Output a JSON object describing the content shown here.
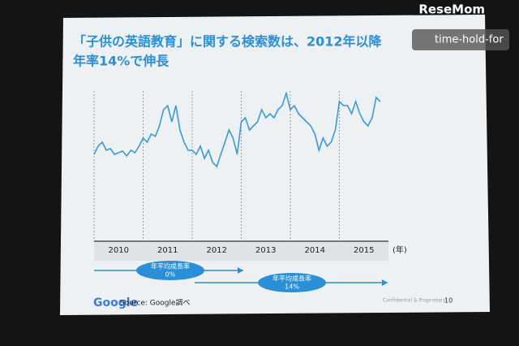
{
  "chart_data": {
    "type": "line",
    "watermark": "ReseMom",
    "overlay": "time-hold-for",
    "title": "「子供の英語教育」に関する検索数は、2012年以降",
    "subtitle": "年率14%で伸長",
    "xlabel": "(年)",
    "x": [
      2010,
      2010.083,
      2010.167,
      2010.25,
      2010.333,
      2010.417,
      2010.5,
      2010.583,
      2010.667,
      2010.75,
      2010.833,
      2010.917,
      2011,
      2011.083,
      2011.167,
      2011.25,
      2011.333,
      2011.417,
      2011.5,
      2011.583,
      2011.667,
      2011.75,
      2011.833,
      2011.917,
      2012,
      2012.083,
      2012.167,
      2012.25,
      2012.333,
      2012.417,
      2012.5,
      2012.583,
      2012.667,
      2012.75,
      2012.833,
      2012.917,
      2013,
      2013.083,
      2013.167,
      2013.25,
      2013.333,
      2013.417,
      2013.5,
      2013.583,
      2013.667,
      2013.75,
      2013.833,
      2013.917,
      2014,
      2014.083,
      2014.167,
      2014.25,
      2014.333,
      2014.417,
      2014.5,
      2014.583,
      2014.667,
      2014.75,
      2014.833,
      2014.917,
      2015,
      2015.083,
      2015.167,
      2015.25,
      2015.333,
      2015.417,
      2015.5,
      2015.583,
      2015.667,
      2015.75,
      2015.833
    ],
    "values": [
      40,
      50,
      55,
      45,
      47,
      40,
      42,
      44,
      38,
      45,
      42,
      50,
      60,
      55,
      65,
      62,
      75,
      95,
      100,
      80,
      100,
      70,
      55,
      45,
      45,
      40,
      50,
      35,
      45,
      30,
      25,
      40,
      55,
      70,
      60,
      40,
      80,
      85,
      70,
      75,
      80,
      95,
      85,
      90,
      85,
      95,
      100,
      115,
      95,
      100,
      90,
      85,
      80,
      75,
      65,
      45,
      60,
      50,
      55,
      70,
      105,
      100,
      100,
      90,
      105,
      90,
      80,
      75,
      85,
      110,
      105
    ],
    "color": "#3a9ad9",
    "xlim": [
      2010,
      2016
    ],
    "ylim": [
      0,
      130
    ],
    "xticks": [
      2010,
      2011,
      2012,
      2013,
      2014,
      2015
    ],
    "annotations": [
      {
        "label": "年平均成長率",
        "value": "0%"
      },
      {
        "label": "年平均成長率",
        "value": "14%"
      }
    ],
    "source": "Source: Google調べ",
    "logo": "Google",
    "footer": "Confidential & Proprietary",
    "page": "10"
  }
}
